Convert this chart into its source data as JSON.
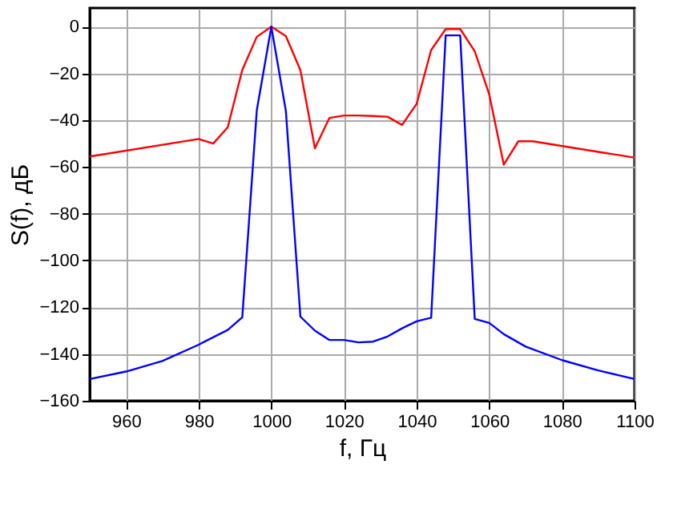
{
  "chart_data": {
    "type": "line",
    "xlabel": "f, Гц",
    "ylabel": "S(f), дБ",
    "xlim": [
      950,
      1100
    ],
    "xticks": [
      960,
      980,
      1000,
      1020,
      1040,
      1060,
      1080,
      1100
    ],
    "ylim": [
      -160,
      8
    ],
    "yticks": [
      -160,
      -140,
      -120,
      -100,
      -80,
      -60,
      -40,
      -20,
      0
    ],
    "grid": true,
    "legend": false,
    "marker": "none",
    "line_style": "solid",
    "series": [
      {
        "color": "#ff0000",
        "x": [
          950,
          980,
          984,
          988,
          992,
          996,
          1000,
          1004,
          1008,
          1012,
          1016,
          1020,
          1024,
          1028,
          1032,
          1036,
          1040,
          1044,
          1048,
          1052,
          1056,
          1060,
          1064,
          1068,
          1072,
          1100
        ],
        "values": [
          -55.5,
          -48,
          -50,
          -43,
          -18.5,
          -4.3,
          0,
          -4,
          -18.6,
          -52,
          -39,
          -38,
          -38,
          -38.2,
          -38.5,
          -42,
          -33,
          -10,
          -1,
          -1,
          -10.5,
          -29,
          -59,
          -49,
          -49,
          -56
        ]
      },
      {
        "color": "#0000ff",
        "x": [
          950,
          960,
          970,
          980,
          988,
          992,
          996,
          1000,
          1004,
          1008,
          1012,
          1016,
          1020,
          1024,
          1028,
          1032,
          1036,
          1040,
          1044,
          1048,
          1052,
          1056,
          1060,
          1064,
          1070,
          1080,
          1090,
          1100
        ],
        "values": [
          -150.7,
          -147.5,
          -143,
          -136,
          -129.7,
          -124.3,
          -35.7,
          0,
          -36,
          -124,
          -130,
          -134,
          -134,
          -135,
          -134.7,
          -132.5,
          -129,
          -126,
          -124.5,
          -3.7,
          -3.7,
          -125,
          -126.7,
          -131.5,
          -136.8,
          -142.6,
          -147,
          -150.7
        ]
      }
    ]
  }
}
